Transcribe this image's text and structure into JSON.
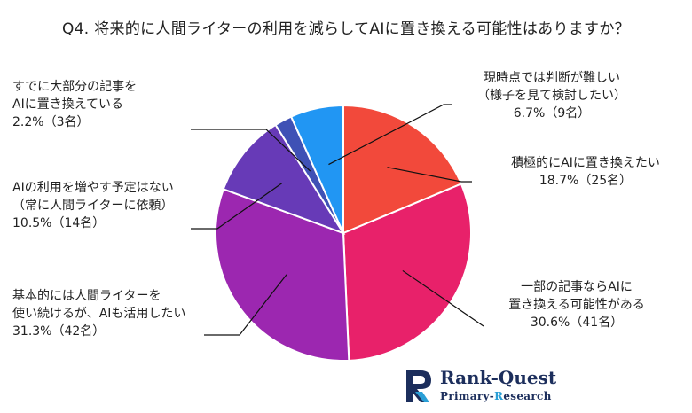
{
  "chart_data": {
    "type": "pie",
    "title": "Q4. 将来的に人間ライターの利用を減らしてAIに置き換える可能性はありますか？",
    "start_angle_deg": 0,
    "direction": "clockwise",
    "slices": [
      {
        "lines": [
          "積極的にAIに置き換えたい"
        ],
        "value_label": "18.7%（25名）",
        "value": 18.7,
        "count": 25,
        "color": "#f2493b"
      },
      {
        "lines": [
          "一部の記事ならAIに",
          "置き換える可能性がある"
        ],
        "value_label": "30.6%（41名）",
        "value": 30.6,
        "count": 41,
        "color": "#e8216a"
      },
      {
        "lines": [
          "基本的には人間ライターを",
          "使い続けるが、AIも活用したい"
        ],
        "value_label": "31.3%（42名）",
        "value": 31.3,
        "count": 42,
        "color": "#9c27b0"
      },
      {
        "lines": [
          "AIの利用を増やす予定はない",
          "（常に人間ライターに依頼）"
        ],
        "value_label": "10.5%（14名）",
        "value": 10.5,
        "count": 14,
        "color": "#673ab7"
      },
      {
        "lines": [
          "すでに大部分の記事を",
          "AIに置き換えている"
        ],
        "value_label": "2.2%（3名）",
        "value": 2.2,
        "count": 3,
        "color": "#3f51b5"
      },
      {
        "lines": [
          "現時点では判断が難しい",
          "（様子を見て検討したい）"
        ],
        "value_label": "6.7%（9名）",
        "value": 6.7,
        "count": 9,
        "color": "#2196f3"
      }
    ]
  },
  "logo": {
    "brand": "Rank-Quest",
    "sub_prefix": "Primary-",
    "sub_highlight": "R",
    "sub_suffix": "esearch"
  }
}
